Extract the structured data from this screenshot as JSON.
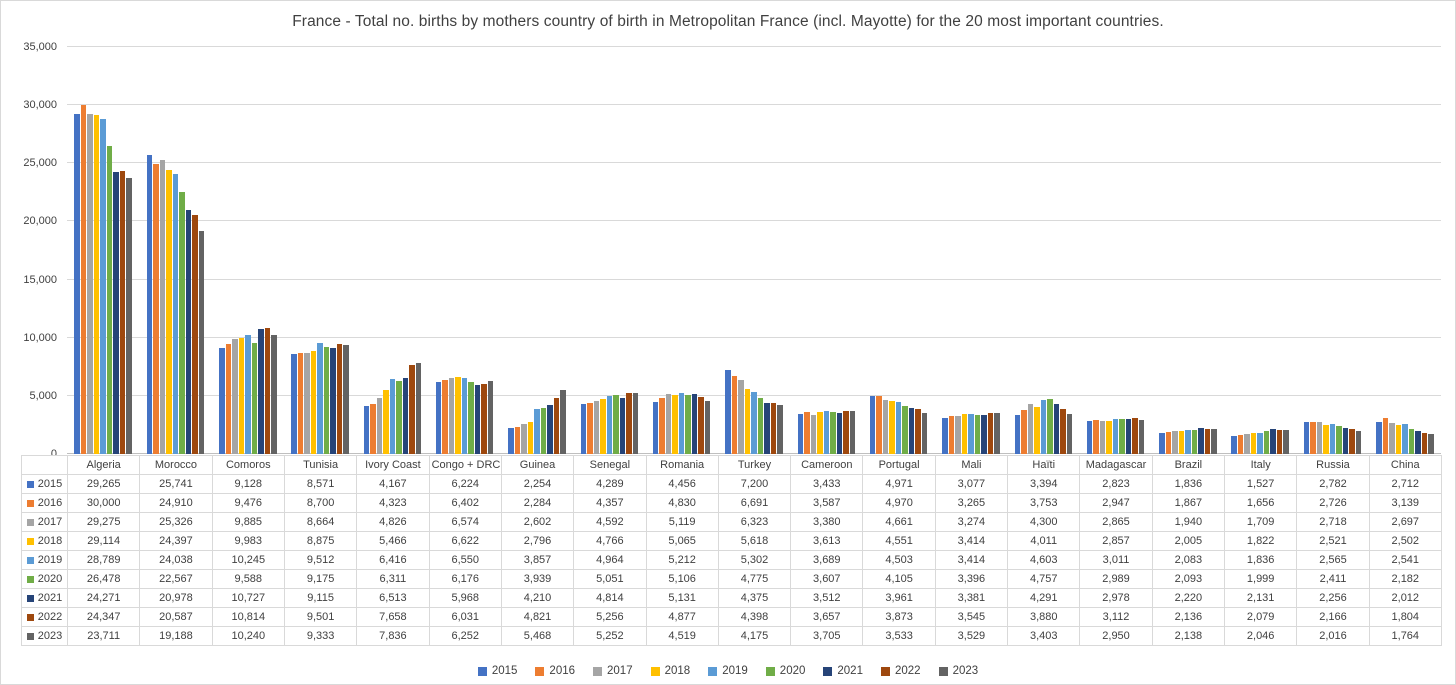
{
  "chart_data": {
    "type": "bar",
    "title": "France - Total no. births by mothers country of birth in Metropolitan France (incl. Mayotte) for the 20 most important countries.",
    "xlabel": "",
    "ylabel": "",
    "ylim": [
      0,
      35000
    ],
    "ytick_interval": 5000,
    "ytick_labels": [
      "0",
      "5,000",
      "10,000",
      "15,000",
      "20,000",
      "25,000",
      "30,000",
      "35,000"
    ],
    "grid": true,
    "legend_position": "bottom",
    "data_table_shown": true,
    "categories": [
      "Algeria",
      "Morocco",
      "Comoros",
      "Tunisia",
      "Ivory Coast",
      "Congo + DRC",
      "Guinea",
      "Senegal",
      "Romania",
      "Turkey",
      "Cameroon",
      "Portugal",
      "Mali",
      "Haïti",
      "Madagascar",
      "Brazil",
      "Italy",
      "Russia",
      "China"
    ],
    "series": [
      {
        "name": "2015",
        "color": "#4472C4",
        "values": [
          29265,
          25741,
          9128,
          8571,
          4167,
          6224,
          2254,
          4289,
          4456,
          7200,
          3433,
          4971,
          3077,
          3394,
          2823,
          1836,
          1527,
          2782,
          2712
        ]
      },
      {
        "name": "2016",
        "color": "#ED7D31",
        "values": [
          30000,
          24910,
          9476,
          8700,
          4323,
          6402,
          2284,
          4357,
          4830,
          6691,
          3587,
          4970,
          3265,
          3753,
          2947,
          1867,
          1656,
          2726,
          3139
        ]
      },
      {
        "name": "2017",
        "color": "#A5A5A5",
        "values": [
          29275,
          25326,
          9885,
          8664,
          4826,
          6574,
          2602,
          4592,
          5119,
          6323,
          3380,
          4661,
          3274,
          4300,
          2865,
          1940,
          1709,
          2718,
          2697
        ]
      },
      {
        "name": "2018",
        "color": "#FFC000",
        "values": [
          29114,
          24397,
          9983,
          8875,
          5466,
          6622,
          2796,
          4766,
          5065,
          5618,
          3613,
          4551,
          3414,
          4011,
          2857,
          2005,
          1822,
          2521,
          2502
        ]
      },
      {
        "name": "2019",
        "color": "#5B9BD5",
        "values": [
          28789,
          24038,
          10245,
          9512,
          6416,
          6550,
          3857,
          4964,
          5212,
          5302,
          3689,
          4503,
          3414,
          4603,
          3011,
          2083,
          1836,
          2565,
          2541
        ]
      },
      {
        "name": "2020",
        "color": "#70AD47",
        "values": [
          26478,
          22567,
          9588,
          9175,
          6311,
          6176,
          3939,
          5051,
          5106,
          4775,
          3607,
          4105,
          3396,
          4757,
          2989,
          2093,
          1999,
          2411,
          2182
        ]
      },
      {
        "name": "2021",
        "color": "#264478",
        "values": [
          24271,
          20978,
          10727,
          9115,
          6513,
          5968,
          4210,
          4814,
          5131,
          4375,
          3512,
          3961,
          3381,
          4291,
          2978,
          2220,
          2131,
          2256,
          2012
        ]
      },
      {
        "name": "2022",
        "color": "#9E480E",
        "values": [
          24347,
          20587,
          10814,
          9501,
          7658,
          6031,
          4821,
          5256,
          4877,
          4398,
          3657,
          3873,
          3545,
          3880,
          3112,
          2136,
          2079,
          2166,
          1804
        ]
      },
      {
        "name": "2023",
        "color": "#636363",
        "values": [
          23711,
          19188,
          10240,
          9333,
          7836,
          6252,
          5468,
          5252,
          4519,
          4175,
          3705,
          3533,
          3529,
          3403,
          2950,
          2138,
          2046,
          2016,
          1764
        ]
      }
    ]
  },
  "layout_colors": {
    "gridline": "#d9d9d9",
    "axis_line": "#bfbfbf",
    "text": "#404040",
    "table_border": "#d9d9d9"
  }
}
